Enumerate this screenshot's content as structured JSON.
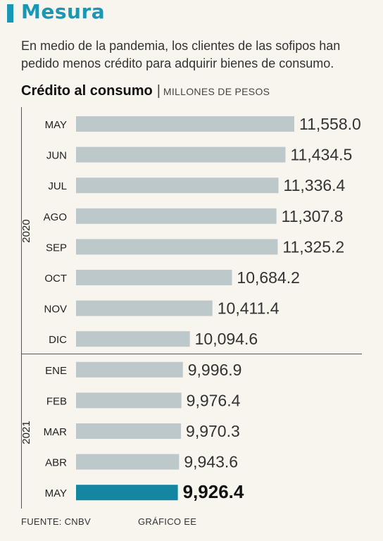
{
  "header": {
    "title": "Mesura",
    "subtitle": "En medio de la pandemia, los clientes de las sofipos han pedido menos crédito para adquirir bienes de consumo."
  },
  "colors": {
    "accent": "#1a97b5",
    "bar": "#bcc8c9",
    "highlight_bar": "#1486a2",
    "background": "#f8f5ee"
  },
  "chart_data": {
    "type": "bar",
    "orientation": "horizontal",
    "title": "Crédito al consumo",
    "unit": "MILLONES DE PESOS",
    "groups": [
      {
        "label": "2020",
        "categories": [
          "MAY",
          "JUN",
          "JUL",
          "AGO",
          "SEP",
          "OCT",
          "NOV",
          "DIC"
        ]
      },
      {
        "label": "2021",
        "categories": [
          "ENE",
          "FEB",
          "MAR",
          "ABR",
          "MAY"
        ]
      }
    ],
    "categories": [
      "MAY",
      "JUN",
      "JUL",
      "AGO",
      "SEP",
      "OCT",
      "NOV",
      "DIC",
      "ENE",
      "FEB",
      "MAR",
      "ABR",
      "MAY"
    ],
    "values": [
      11558.0,
      11434.5,
      11336.4,
      11307.8,
      11325.2,
      10684.2,
      10411.4,
      10094.6,
      9996.9,
      9976.4,
      9970.3,
      9943.6,
      9926.4
    ],
    "value_labels": [
      "11,558.0",
      "11,434.5",
      "11,336.4",
      "11,307.8",
      "11,325.2",
      "10,684.2",
      "10,411.4",
      "10,094.6",
      "9,996.9",
      "9,976.4",
      "9,970.3",
      "9,943.6",
      "9,926.4"
    ],
    "highlight_index": 12,
    "xlim": [
      8500,
      11558
    ],
    "grid": false
  },
  "footer": {
    "source": "FUENTE: CNBV",
    "credit": "GRÁFICO EE"
  }
}
